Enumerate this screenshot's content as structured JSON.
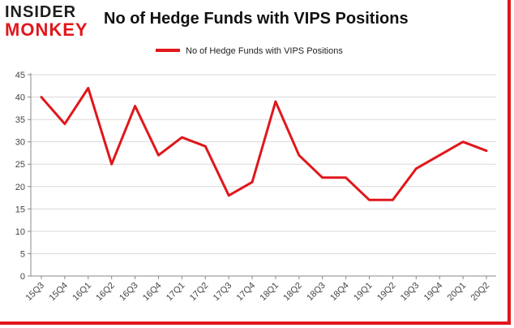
{
  "logo": {
    "line1": "INSIDER",
    "line2": "MONKEY"
  },
  "chart_data": {
    "type": "line",
    "title": "No of Hedge Funds with VIPS Positions",
    "categories": [
      "15Q3",
      "15Q4",
      "16Q1",
      "16Q2",
      "16Q3",
      "16Q4",
      "17Q1",
      "17Q2",
      "17Q3",
      "17Q4",
      "18Q1",
      "18Q2",
      "18Q3",
      "18Q4",
      "19Q1",
      "19Q2",
      "19Q3",
      "19Q4",
      "20Q1",
      "20Q2"
    ],
    "series": [
      {
        "name": "No of Hedge Funds with VIPS Positions",
        "color": "#e0171b",
        "values": [
          40,
          34,
          42,
          25,
          38,
          27,
          31,
          29,
          18,
          21,
          39,
          27,
          22,
          22,
          17,
          17,
          24,
          27,
          30,
          28
        ]
      }
    ],
    "ylim": [
      0,
      45
    ],
    "yticks": [
      0,
      5,
      10,
      15,
      20,
      25,
      30,
      35,
      40,
      45
    ],
    "grid": true,
    "legend": "top-center",
    "xlabel": "",
    "ylabel": ""
  }
}
